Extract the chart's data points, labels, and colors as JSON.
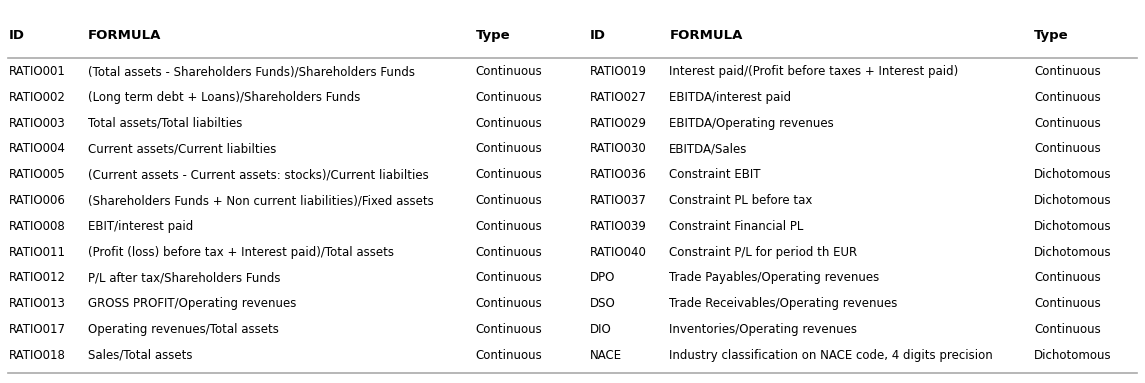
{
  "left_rows": [
    [
      "RATIO001",
      "(Total assets - Shareholders Funds)/Shareholders Funds",
      "Continuous"
    ],
    [
      "RATIO002",
      "(Long term debt + Loans)/Shareholders Funds",
      "Continuous"
    ],
    [
      "RATIO003",
      "Total assets/Total liabilties",
      "Continuous"
    ],
    [
      "RATIO004",
      "Current assets/Current liabilties",
      "Continuous"
    ],
    [
      "RATIO005",
      "(Current assets - Current assets: stocks)/Current liabilties",
      "Continuous"
    ],
    [
      "RATIO006",
      "(Shareholders Funds + Non current liabilities)/Fixed assets",
      "Continuous"
    ],
    [
      "RATIO008",
      "EBIT/interest paid",
      "Continuous"
    ],
    [
      "RATIO011",
      "(Profit (loss) before tax + Interest paid)/Total assets",
      "Continuous"
    ],
    [
      "RATIO012",
      "P/L after tax/Shareholders Funds",
      "Continuous"
    ],
    [
      "RATIO013",
      "GROSS PROFIT/Operating revenues",
      "Continuous"
    ],
    [
      "RATIO017",
      "Operating revenues/Total assets",
      "Continuous"
    ],
    [
      "RATIO018",
      "Sales/Total assets",
      "Continuous"
    ]
  ],
  "right_rows": [
    [
      "RATIO019",
      "Interest paid/(Profit before taxes + Interest paid)",
      "Continuous"
    ],
    [
      "RATIO027",
      "EBITDA/interest paid",
      "Continuous"
    ],
    [
      "RATIO029",
      "EBITDA/Operating revenues",
      "Continuous"
    ],
    [
      "RATIO030",
      "EBITDA/Sales",
      "Continuous"
    ],
    [
      "RATIO036",
      "Constraint EBIT",
      "Dichotomous"
    ],
    [
      "RATIO037",
      "Constraint PL before tax",
      "Dichotomous"
    ],
    [
      "RATIO039",
      "Constraint Financial PL",
      "Dichotomous"
    ],
    [
      "RATIO040",
      "Constraint P/L for period th EUR",
      "Dichotomous"
    ],
    [
      "DPO",
      "Trade Payables/Operating revenues",
      "Continuous"
    ],
    [
      "DSO",
      "Trade Receivables/Operating revenues",
      "Continuous"
    ],
    [
      "DIO",
      "Inventories/Operating revenues",
      "Continuous"
    ],
    [
      "NACE",
      "Industry classification on NACE code, 4 digits precision",
      "Dichotomous"
    ]
  ],
  "left_headers": [
    "ID",
    "FORMULA",
    "Type"
  ],
  "right_headers": [
    "ID",
    "FORMULA",
    "Type"
  ],
  "bg_color": "#ffffff",
  "header_line_color": "#aaaaaa",
  "text_color": "#000000",
  "font_size": 8.5,
  "header_font_size": 9.5
}
